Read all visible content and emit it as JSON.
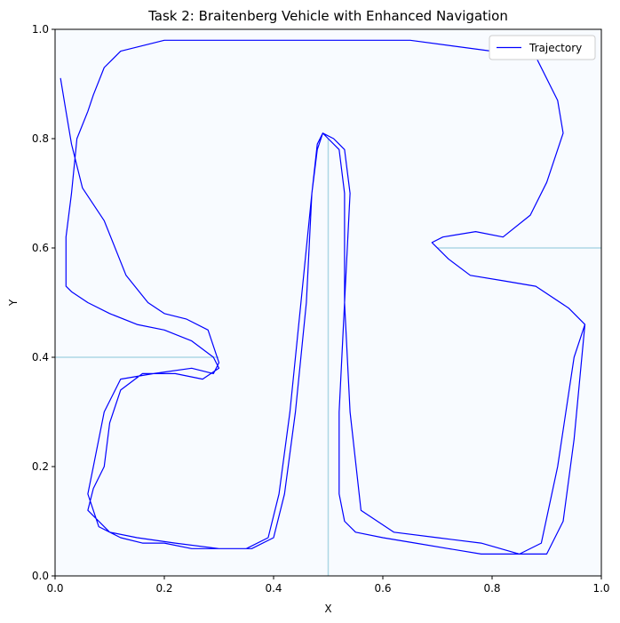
{
  "chart_data": {
    "type": "line",
    "title": "Task 2: Braitenberg Vehicle with Enhanced Navigation",
    "xlabel": "X",
    "ylabel": "Y",
    "xlim": [
      0,
      1
    ],
    "ylim": [
      0,
      1
    ],
    "xticks": [
      "0.0",
      "0.2",
      "0.4",
      "0.6",
      "0.8",
      "1.0"
    ],
    "yticks": [
      "0.0",
      "0.2",
      "0.4",
      "0.6",
      "0.8",
      "1.0"
    ],
    "grid": false,
    "legend_position": "top-right",
    "background_color": "#f8fbff",
    "walls": [
      {
        "x": [
          0.0,
          0.3
        ],
        "y": [
          0.4,
          0.4
        ]
      },
      {
        "x": [
          0.5,
          0.5
        ],
        "y": [
          0.0,
          0.8
        ]
      },
      {
        "x": [
          0.7,
          1.0
        ],
        "y": [
          0.6,
          0.6
        ]
      }
    ],
    "wall_color": "#add8e6",
    "series": [
      {
        "name": "Trajectory",
        "color": "#0000ff",
        "x": [
          0.01,
          0.02,
          0.03,
          0.05,
          0.09,
          0.13,
          0.17,
          0.2,
          0.24,
          0.28,
          0.3,
          0.29,
          0.25,
          0.18,
          0.12,
          0.09,
          0.07,
          0.06,
          0.08,
          0.12,
          0.16,
          0.2,
          0.25,
          0.3,
          0.35,
          0.39,
          0.41,
          0.43,
          0.45,
          0.47,
          0.48,
          0.49,
          0.51,
          0.53,
          0.54,
          0.53,
          0.52,
          0.52,
          0.53,
          0.55,
          0.6,
          0.66,
          0.72,
          0.78,
          0.85,
          0.89,
          0.92,
          0.95,
          0.97,
          0.94,
          0.88,
          0.82,
          0.76,
          0.72,
          0.69,
          0.71,
          0.77,
          0.82,
          0.87,
          0.9,
          0.93,
          0.92,
          0.88,
          0.8,
          0.65,
          0.5,
          0.35,
          0.2,
          0.12,
          0.09,
          0.07,
          0.06,
          0.04,
          0.03,
          0.02,
          0.02,
          0.02,
          0.03,
          0.06,
          0.1,
          0.15,
          0.2,
          0.25,
          0.29,
          0.3,
          0.27,
          0.22,
          0.16,
          0.12,
          0.1,
          0.09,
          0.07,
          0.06,
          0.1,
          0.15,
          0.22,
          0.3,
          0.36,
          0.4,
          0.42,
          0.44,
          0.46,
          0.47,
          0.48,
          0.49,
          0.5,
          0.52,
          0.53,
          0.53,
          0.54,
          0.56,
          0.62,
          0.7,
          0.78,
          0.85,
          0.9,
          0.93,
          0.95,
          0.97
        ],
        "y": [
          0.91,
          0.85,
          0.79,
          0.71,
          0.65,
          0.55,
          0.5,
          0.48,
          0.47,
          0.45,
          0.39,
          0.37,
          0.38,
          0.37,
          0.36,
          0.3,
          0.2,
          0.15,
          0.09,
          0.07,
          0.06,
          0.06,
          0.05,
          0.05,
          0.05,
          0.07,
          0.15,
          0.3,
          0.5,
          0.7,
          0.79,
          0.81,
          0.8,
          0.78,
          0.7,
          0.5,
          0.3,
          0.15,
          0.1,
          0.08,
          0.07,
          0.06,
          0.05,
          0.04,
          0.04,
          0.06,
          0.2,
          0.4,
          0.46,
          0.49,
          0.53,
          0.54,
          0.55,
          0.58,
          0.61,
          0.62,
          0.63,
          0.62,
          0.66,
          0.72,
          0.81,
          0.87,
          0.95,
          0.96,
          0.98,
          0.98,
          0.98,
          0.98,
          0.96,
          0.93,
          0.88,
          0.85,
          0.8,
          0.7,
          0.62,
          0.55,
          0.53,
          0.52,
          0.5,
          0.48,
          0.46,
          0.45,
          0.43,
          0.4,
          0.38,
          0.36,
          0.37,
          0.37,
          0.34,
          0.28,
          0.2,
          0.16,
          0.12,
          0.08,
          0.07,
          0.06,
          0.05,
          0.05,
          0.07,
          0.15,
          0.3,
          0.5,
          0.7,
          0.78,
          0.81,
          0.8,
          0.78,
          0.7,
          0.5,
          0.3,
          0.12,
          0.08,
          0.07,
          0.06,
          0.04,
          0.04,
          0.1,
          0.25,
          0.46
        ]
      }
    ]
  }
}
